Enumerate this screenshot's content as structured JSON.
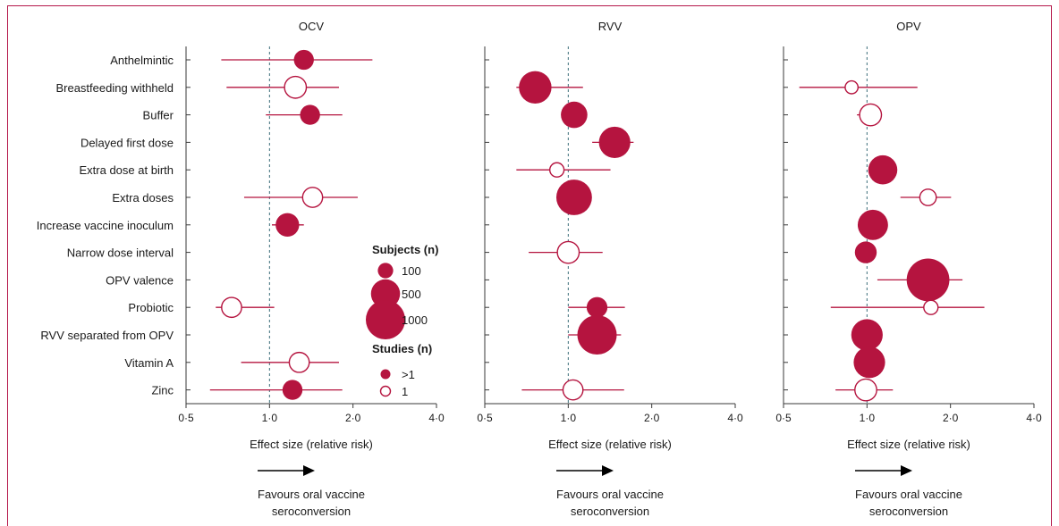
{
  "chart_data": {
    "type": "forest",
    "x_scale": "log",
    "xlim": [
      0.5,
      4.0
    ],
    "x_ticks": [
      0.5,
      1.0,
      2.0,
      4.0
    ],
    "x_tick_labels": [
      "0·5",
      "1·0",
      "2·0",
      "4·0"
    ],
    "reference_line": 1.0,
    "categories": [
      "Anthelmintic",
      "Breastfeeding withheld",
      "Buffer",
      "Delayed first dose",
      "Extra dose at birth",
      "Extra doses",
      "Increase vaccine inoculum",
      "Narrow dose interval",
      "OPV valence",
      "Probiotic",
      "RVV separated from OPV",
      "Vitamin A",
      "Zinc"
    ],
    "panels": [
      {
        "title": "OCV",
        "xlabel": "Effect size (relative risk)",
        "arrow_text": [
          "Favours oral vaccine",
          "seroconversion"
        ],
        "points": [
          {
            "category": "Anthelmintic",
            "rr": 1.33,
            "lo": 0.67,
            "hi": 2.35,
            "subjects": 200,
            "studies": ">1"
          },
          {
            "category": "Breastfeeding withheld",
            "rr": 1.24,
            "lo": 0.7,
            "hi": 1.78,
            "subjects": 250,
            "studies": "1"
          },
          {
            "category": "Buffer",
            "rr": 1.4,
            "lo": 0.97,
            "hi": 1.83,
            "subjects": 200,
            "studies": ">1"
          },
          {
            "category": "Extra doses",
            "rr": 1.43,
            "lo": 0.81,
            "hi": 2.08,
            "subjects": 200,
            "studies": "1"
          },
          {
            "category": "Increase vaccine inoculum",
            "rr": 1.16,
            "lo": 1.02,
            "hi": 1.33,
            "subjects": 300,
            "studies": ">1"
          },
          {
            "category": "Probiotic",
            "rr": 0.73,
            "lo": 0.64,
            "hi": 1.04,
            "subjects": 200,
            "studies": "1"
          },
          {
            "category": "Vitamin A",
            "rr": 1.28,
            "lo": 0.79,
            "hi": 1.78,
            "subjects": 200,
            "studies": "1"
          },
          {
            "category": "Zinc",
            "rr": 1.21,
            "lo": 0.61,
            "hi": 1.83,
            "subjects": 200,
            "studies": ">1"
          }
        ]
      },
      {
        "title": "RVV",
        "xlabel": "Effect size (relative risk)",
        "arrow_text": [
          "Favours oral vaccine",
          "seroconversion"
        ],
        "points": [
          {
            "category": "Breastfeeding withheld",
            "rr": 0.76,
            "lo": 0.65,
            "hi": 1.13,
            "subjects": 650,
            "studies": ">1"
          },
          {
            "category": "Buffer",
            "rr": 1.05,
            "lo": 1.0,
            "hi": 1.1,
            "subjects": 400,
            "studies": ">1"
          },
          {
            "category": "Delayed first dose",
            "rr": 1.47,
            "lo": 1.22,
            "hi": 1.72,
            "subjects": 600,
            "studies": ">1"
          },
          {
            "category": "Extra dose at birth",
            "rr": 0.91,
            "lo": 0.65,
            "hi": 1.42,
            "subjects": 80,
            "studies": "1"
          },
          {
            "category": "Extra doses",
            "rr": 1.05,
            "lo": 0.93,
            "hi": 1.2,
            "subjects": 800,
            "studies": ">1"
          },
          {
            "category": "Narrow dose interval",
            "rr": 1.0,
            "lo": 0.72,
            "hi": 1.33,
            "subjects": 250,
            "studies": "1"
          },
          {
            "category": "Probiotic",
            "rr": 1.27,
            "lo": 1.0,
            "hi": 1.6,
            "subjects": 220,
            "studies": ">1"
          },
          {
            "category": "RVV separated from OPV",
            "rr": 1.27,
            "lo": 1.0,
            "hi": 1.55,
            "subjects": 1000,
            "studies": ">1"
          },
          {
            "category": "Zinc",
            "rr": 1.04,
            "lo": 0.68,
            "hi": 1.59,
            "subjects": 200,
            "studies": "1"
          }
        ]
      },
      {
        "title": "OPV",
        "xlabel": "Effect size (relative risk)",
        "arrow_text": [
          "Favours oral vaccine",
          "seroconversion"
        ],
        "points": [
          {
            "category": "Breastfeeding withheld",
            "rr": 0.88,
            "lo": 0.57,
            "hi": 1.52,
            "subjects": 60,
            "studies": "1"
          },
          {
            "category": "Buffer",
            "rr": 1.03,
            "lo": 0.92,
            "hi": 1.13,
            "subjects": 250,
            "studies": "1"
          },
          {
            "category": "Extra dose at birth",
            "rr": 1.14,
            "lo": 1.14,
            "hi": 1.14,
            "subjects": 500,
            "studies": ">1"
          },
          {
            "category": "Extra doses",
            "rr": 1.66,
            "lo": 1.32,
            "hi": 2.01,
            "subjects": 120,
            "studies": "1"
          },
          {
            "category": "Increase vaccine inoculum",
            "rr": 1.05,
            "lo": 1.05,
            "hi": 1.05,
            "subjects": 550,
            "studies": ">1"
          },
          {
            "category": "Narrow dose interval",
            "rr": 0.99,
            "lo": 0.99,
            "hi": 0.99,
            "subjects": 250,
            "studies": ">1"
          },
          {
            "category": "OPV valence",
            "rr": 1.66,
            "lo": 1.09,
            "hi": 2.21,
            "subjects": 1200,
            "studies": ">1"
          },
          {
            "category": "Probiotic",
            "rr": 1.7,
            "lo": 0.74,
            "hi": 2.65,
            "subjects": 80,
            "studies": "1"
          },
          {
            "category": "RVV separated from OPV",
            "rr": 1.0,
            "lo": 1.0,
            "hi": 1.0,
            "subjects": 600,
            "studies": ">1"
          },
          {
            "category": "Vitamin A",
            "rr": 1.02,
            "lo": 1.02,
            "hi": 1.02,
            "subjects": 600,
            "studies": ">1"
          },
          {
            "category": "Zinc",
            "rr": 0.99,
            "lo": 0.77,
            "hi": 1.24,
            "subjects": 250,
            "studies": "1"
          }
        ]
      }
    ],
    "legend": {
      "placement": "inside-left-panel-lower-right",
      "subjects_title": "Subjects (n)",
      "subjects_items": [
        {
          "label": "100",
          "value": 100
        },
        {
          "label": "500",
          "value": 500
        },
        {
          "label": "1000",
          "value": 1000
        }
      ],
      "studies_title": "Studies (n)",
      "studies_items": [
        {
          "label": ">1",
          "filled": true
        },
        {
          "label": "1",
          "filled": false
        }
      ]
    },
    "colors": {
      "marker": "#b5143f",
      "axis": "#3a3a3a",
      "reference_line": "#3c6e7a",
      "frame": "#b5174a"
    }
  }
}
